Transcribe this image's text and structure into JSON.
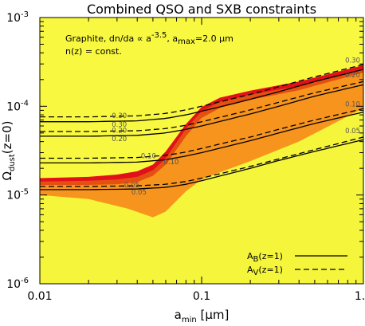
{
  "chart_data": {
    "type": "line",
    "title": "Combined QSO and SXB constraints",
    "xlabel": {
      "main": "a",
      "sub": "min",
      "unit": " [μm]"
    },
    "ylabel": {
      "main": "Ω",
      "sub": "dust",
      "tail": "(z=0)"
    },
    "x_scale": "log",
    "y_scale": "log",
    "xlim": [
      0.01,
      1.0
    ],
    "ylim": [
      1e-06,
      0.001
    ],
    "x_ticks": [
      {
        "value": 0.01,
        "label": "0.01"
      },
      {
        "value": 0.1,
        "label": "0.1"
      },
      {
        "value": 1.0,
        "label": "1.0"
      }
    ],
    "y_ticks": [
      {
        "value": 1e-06,
        "base": "10",
        "exp": "-6"
      },
      {
        "value": 1e-05,
        "base": "10",
        "exp": "-5"
      },
      {
        "value": 0.0001,
        "base": "10",
        "exp": "-4"
      },
      {
        "value": 0.001,
        "base": "10",
        "exp": "-3"
      }
    ],
    "annotation": {
      "line1": {
        "pre": "Graphite, dn/da ∝ a",
        "exp": "-3.5",
        "mid": ", a",
        "sub": "max",
        "post": "=2.0 μm"
      },
      "line2": "n(z) = const."
    },
    "regions": [
      {
        "color": "#f5f53c",
        "boundary_x": [
          0.01,
          0.02,
          0.035,
          0.05,
          0.06,
          0.08,
          0.1,
          0.13,
          0.2,
          0.4,
          1.0
        ],
        "boundary_y": [
          1e-05,
          9e-06,
          7e-06,
          5.6e-06,
          6.5e-06,
          1.1e-05,
          1.5e-05,
          1.8e-05,
          2.4e-05,
          4e-05,
          9.5e-05
        ]
      },
      {
        "color": "#f7941d",
        "boundary_x": [
          0.01,
          0.02,
          0.03,
          0.04,
          0.05,
          0.06,
          0.08,
          0.1,
          0.13,
          0.2,
          0.4,
          1.0
        ],
        "boundary_y": [
          1.3e-05,
          1.3e-05,
          1.32e-05,
          1.4e-05,
          1.65e-05,
          2.2e-05,
          4.6e-05,
          7.4e-05,
          9.6e-05,
          0.000118,
          0.000152,
          0.00024
        ]
      },
      {
        "color": "#e4500f",
        "boundary_x": [
          0.01,
          0.02,
          0.03,
          0.04,
          0.05,
          0.06,
          0.08,
          0.1,
          0.13,
          0.2,
          0.4,
          1.0
        ],
        "boundary_y": [
          1.42e-05,
          1.45e-05,
          1.5e-05,
          1.6e-05,
          1.9e-05,
          2.6e-05,
          5.6e-05,
          8.8e-05,
          0.000112,
          0.000135,
          0.00017,
          0.00026
        ]
      },
      {
        "color": "#e2101a",
        "boundary_x": [
          0.01,
          0.02,
          0.03,
          0.04,
          0.05,
          0.06,
          0.08,
          0.1,
          0.13,
          0.2,
          0.4,
          1.0
        ],
        "boundary_y": [
          1.55e-05,
          1.6e-05,
          1.7e-05,
          1.85e-05,
          2.2e-05,
          3.1e-05,
          6.3e-05,
          9.8e-05,
          0.000125,
          0.00015,
          0.00019,
          0.00029
        ]
      }
    ],
    "series": [
      {
        "name": "A_B(z=1)",
        "style": "solid",
        "label": "0.05",
        "x": [
          0.01,
          0.02,
          0.04,
          0.06,
          0.08,
          0.1,
          0.15,
          0.2,
          0.3,
          0.5,
          1.0
        ],
        "y": [
          1.15e-05,
          1.15e-05,
          1.17e-05,
          1.22e-05,
          1.32e-05,
          1.45e-05,
          1.75e-05,
          2e-05,
          2.45e-05,
          3.1e-05,
          4.2e-05
        ],
        "label_x": 0.041
      },
      {
        "name": "A_V(z=1)",
        "style": "dashed",
        "label": "0.05",
        "x": [
          0.01,
          0.02,
          0.04,
          0.06,
          0.08,
          0.1,
          0.15,
          0.2,
          0.3,
          0.5,
          1.0
        ],
        "y": [
          1.25e-05,
          1.25e-05,
          1.27e-05,
          1.32e-05,
          1.42e-05,
          1.55e-05,
          1.85e-05,
          2.1e-05,
          2.55e-05,
          3.25e-05,
          4.5e-05
        ],
        "label_x": 0.037
      },
      {
        "name": "A_B(z=1)",
        "style": "solid",
        "label": "0.10",
        "x": [
          0.01,
          0.02,
          0.04,
          0.06,
          0.08,
          0.1,
          0.15,
          0.2,
          0.3,
          0.5,
          1.0
        ],
        "y": [
          2.3e-05,
          2.3e-05,
          2.35e-05,
          2.5e-05,
          2.75e-05,
          3e-05,
          3.6e-05,
          4.1e-05,
          5e-05,
          6.4e-05,
          8.6e-05
        ],
        "label_x": 0.065
      },
      {
        "name": "A_V(z=1)",
        "style": "dashed",
        "label": "0.10",
        "x": [
          0.01,
          0.02,
          0.04,
          0.06,
          0.08,
          0.1,
          0.15,
          0.2,
          0.3,
          0.5,
          1.0
        ],
        "y": [
          2.6e-05,
          2.6e-05,
          2.65e-05,
          2.8e-05,
          3.05e-05,
          3.35e-05,
          4e-05,
          4.5e-05,
          5.5e-05,
          7e-05,
          9.4e-05
        ],
        "label_x": 0.047
      },
      {
        "name": "A_B(z=1)",
        "style": "solid",
        "label": "0.20",
        "x": [
          0.01,
          0.02,
          0.04,
          0.06,
          0.08,
          0.1,
          0.15,
          0.2,
          0.3,
          0.5,
          1.0
        ],
        "y": [
          4.6e-05,
          4.6e-05,
          4.7e-05,
          5e-05,
          5.5e-05,
          6e-05,
          7.2e-05,
          8.2e-05,
          0.0001,
          0.00013,
          0.000175
        ],
        "label_x": 0.031
      },
      {
        "name": "A_V(z=1)",
        "style": "dashed",
        "label": "0.20",
        "x": [
          0.01,
          0.02,
          0.04,
          0.06,
          0.08,
          0.1,
          0.15,
          0.2,
          0.3,
          0.5,
          1.0
        ],
        "y": [
          5.2e-05,
          5.2e-05,
          5.3e-05,
          5.6e-05,
          6.1e-05,
          6.7e-05,
          8e-05,
          9.1e-05,
          0.000111,
          0.000142,
          0.00019
        ],
        "label_x": 0.031
      },
      {
        "name": "A_B(z=1)",
        "style": "solid",
        "label": "0.30",
        "x": [
          0.01,
          0.02,
          0.04,
          0.06,
          0.08,
          0.1,
          0.15,
          0.2,
          0.3,
          0.5,
          1.0
        ],
        "y": [
          6.7e-05,
          6.7e-05,
          6.85e-05,
          7.3e-05,
          8e-05,
          8.8e-05,
          0.000105,
          0.00012,
          0.000146,
          0.00019,
          0.00026
        ],
        "label_x": 0.031
      },
      {
        "name": "A_V(z=1)",
        "style": "dashed",
        "label": "0.30",
        "x": [
          0.01,
          0.02,
          0.04,
          0.06,
          0.08,
          0.1,
          0.15,
          0.2,
          0.3,
          0.5,
          1.0
        ],
        "y": [
          7.6e-05,
          7.6e-05,
          7.8e-05,
          8.3e-05,
          9.1e-05,
          0.0001,
          0.00012,
          0.000136,
          0.000166,
          0.000215,
          0.000295
        ],
        "label_x": 0.031
      }
    ],
    "right_labels": [
      {
        "label": "0.30",
        "y": 0.000285
      },
      {
        "label": "0.20",
        "y": 0.000195
      },
      {
        "label": "0.10",
        "y": 9.2e-05
      },
      {
        "label": "0.05",
        "y": 4.6e-05
      }
    ],
    "legend": {
      "placement": "lower-right",
      "entries": [
        {
          "main": "A",
          "sub": "B",
          "tail": "(z=1)",
          "style": "solid"
        },
        {
          "main": "A",
          "sub": "V",
          "tail": "(z=1)",
          "style": "dashed"
        }
      ]
    },
    "colors": {
      "background": "#f8f840",
      "axis": "#000000",
      "curve_label": "#555555"
    }
  }
}
